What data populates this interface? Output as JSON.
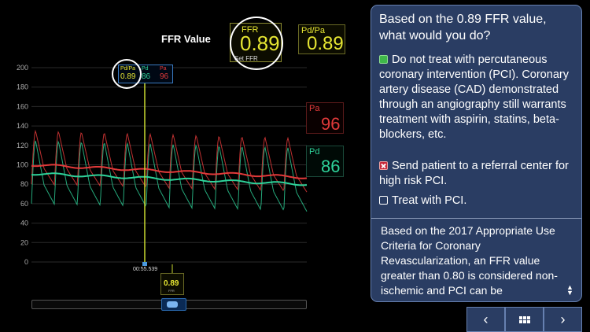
{
  "chart": {
    "title": "FFR Value",
    "y_ticks": [
      "200",
      "180",
      "160",
      "140",
      "120",
      "100",
      "80",
      "60",
      "40",
      "20",
      "0"
    ],
    "cursor_time": "00:55.539",
    "cursor_readout": {
      "pdpa_label": "Pd/Pa",
      "pdpa_value": "0.89",
      "pd_label": "Pd",
      "pd_value": "86",
      "pa_label": "Pa",
      "pa_value": "96"
    },
    "mini_readout": {
      "value": "0.89",
      "label": "FFR"
    },
    "colors": {
      "pa": "#e23a3a",
      "pd": "#2ed39a",
      "ratio": "#e6e632",
      "cursor": "#c8d830"
    }
  },
  "chart_data": {
    "type": "line",
    "ylim": [
      0,
      200
    ],
    "series": [
      {
        "name": "Pa",
        "approx_systolic": 135,
        "approx_diastolic": 80,
        "mean_start": 100,
        "mean_end": 87
      },
      {
        "name": "Pd",
        "approx_systolic": 125,
        "approx_diastolic": 60,
        "mean_start": 91,
        "mean_end": 80
      }
    ]
  },
  "readouts": {
    "ffr": {
      "label": "FFR",
      "value": "0.89",
      "action": "Set FFR"
    },
    "pdpa": {
      "label": "Pd/Pa",
      "value": "0.89"
    },
    "pa": {
      "label": "Pa",
      "value": "96"
    },
    "pd": {
      "label": "Pd",
      "value": "86"
    }
  },
  "scrubber": {
    "position": 0.56
  },
  "panel": {
    "question": "Based on the 0.89 FFR value, what would you do?",
    "options": [
      {
        "text": "Do not treat with percutaneous coronary intervention (PCI). Coronary artery disease (CAD) demonstrated through an angiography still warrants treatment with aspirin, statins, beta-blockers, etc.",
        "state": "correct"
      },
      {
        "text": "Send patient to a referral center for high risk PCI.",
        "state": "incorrect"
      },
      {
        "text": "Treat with PCI.",
        "state": "unselected"
      }
    ],
    "explanation": "Based on the 2017 Appropriate Use Criteria for Coronary Revascularization, an FFR value greater than 0.80 is considered non-ischemic and PCI can be"
  },
  "nav": {
    "prev": "‹",
    "next": "›"
  }
}
